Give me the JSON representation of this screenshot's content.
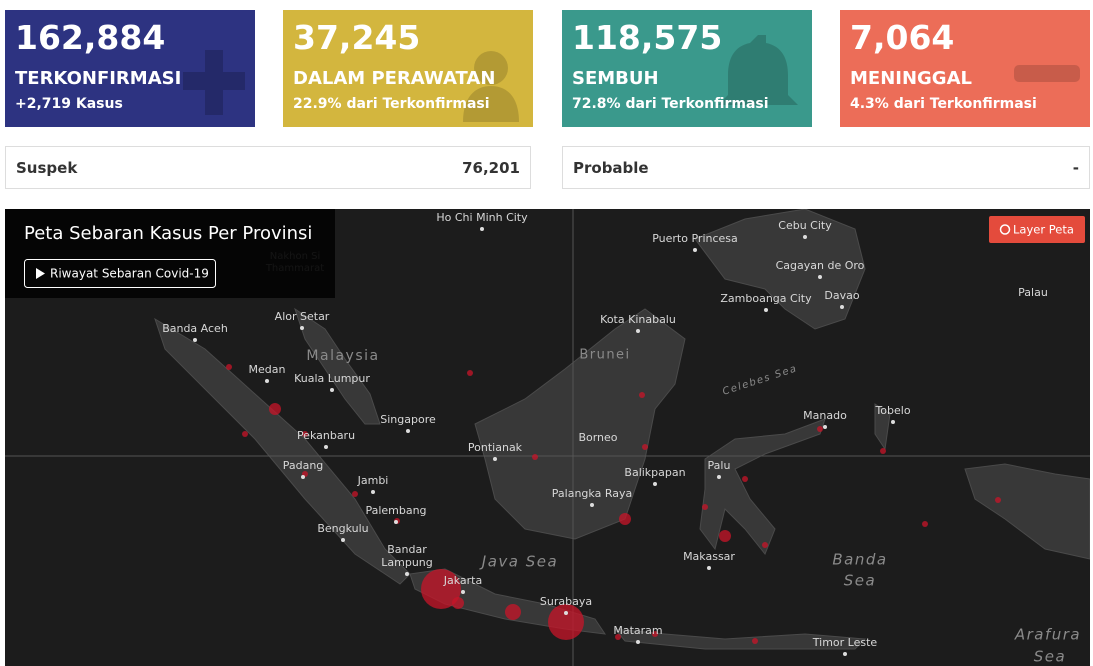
{
  "cards": [
    {
      "value": "162,884",
      "label": "TERKONFIRMASI",
      "sub": "+2,719 Kasus"
    },
    {
      "value": "37,245",
      "label": "DALAM PERAWATAN",
      "sub": "22.9% dari Terkonfirmasi"
    },
    {
      "value": "118,575",
      "label": "SEMBUH",
      "sub": "72.8% dari Terkonfirmasi"
    },
    {
      "value": "7,064",
      "label": "MENINGGAL",
      "sub": "4.3% dari Terkonfirmasi"
    }
  ],
  "summary": [
    {
      "label": "Suspek",
      "value": "76,201"
    },
    {
      "label": "Probable",
      "value": "-"
    }
  ],
  "map": {
    "title": "Peta Sebaran Kasus Per Provinsi",
    "history_button": "Riwayat Sebaran Covid-19",
    "layer_button": "Layer Peta",
    "places": [
      "Ho Chi Minh City",
      "Puerto Princesa",
      "Cebu City",
      "Cagayan de Oro",
      "Zamboanga City",
      "Davao",
      "Palau",
      "Banda Aceh",
      "Alor Setar",
      "Kota Kinabalu",
      "Medan",
      "Kuala Lumpur",
      "Singapore",
      "Pekanbaru",
      "Pontianak",
      "Borneo",
      "Manado",
      "Tobelo",
      "Padang",
      "Balikpapan",
      "Palu",
      "Jambi",
      "Palangka Raya",
      "Palembang",
      "Bengkulu",
      "Bandar",
      "Lampung",
      "Makassar",
      "Jakarta",
      "Surabaya",
      "Mataram",
      "Timor Leste",
      "Nakhon Si",
      "Thammarat"
    ],
    "regions": [
      "Malaysia",
      "Brunei",
      "Java Sea",
      "Banda",
      "Sea",
      "Arafura",
      "Sea",
      "Celebes Sea"
    ]
  }
}
